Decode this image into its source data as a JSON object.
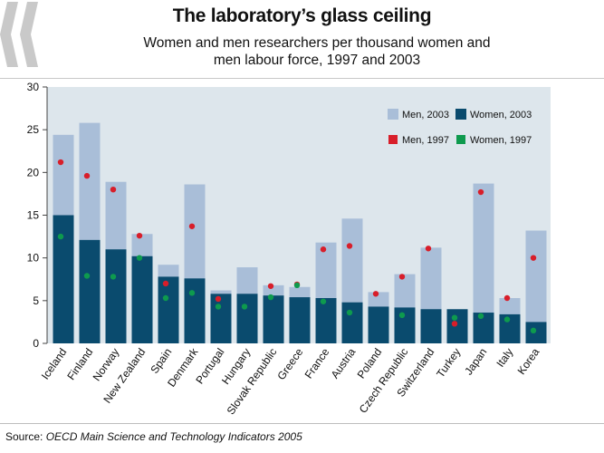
{
  "header": {
    "title": "The laboratory’s glass ceiling",
    "subtitle_line1": "Women and men researchers per thousand women and",
    "subtitle_line2": "men labour force, 1997 and 2003"
  },
  "footer": {
    "source_label": "Source:",
    "source_text": "OECD Main Science and Technology Indicators 2005"
  },
  "colors": {
    "plot_bg": "#dde6ec",
    "men_2003": "#a9bed8",
    "women_2003": "#0a4b6e",
    "men_1997": "#d81e2a",
    "women_1997": "#0e9a4e",
    "chevron": "#c9c9c9"
  },
  "chart_data": {
    "type": "bar",
    "title": "The laboratory’s glass ceiling",
    "subtitle": "Women and men researchers per thousand women and men labour force, 1997 and 2003",
    "categories": [
      "Iceland",
      "Finland",
      "Norway",
      "New Zealand",
      "Spain",
      "Denmark",
      "Portugal",
      "Hungary",
      "Slovak Republic",
      "Greece",
      "France",
      "Austria",
      "Poland",
      "Czech Republic",
      "Switzerland",
      "Turkey",
      "Japan",
      "Italy",
      "Korea"
    ],
    "ylim": [
      0,
      30
    ],
    "yticks": [
      0,
      5,
      10,
      15,
      20,
      25,
      30
    ],
    "legend_position": "top-right",
    "series": [
      {
        "name": "Men, 2003",
        "kind": "bar",
        "values": [
          24.4,
          25.8,
          18.9,
          12.8,
          9.2,
          18.6,
          6.2,
          8.9,
          6.8,
          6.6,
          11.8,
          14.6,
          6.0,
          8.1,
          11.2,
          3.5,
          18.7,
          5.3,
          13.2
        ]
      },
      {
        "name": "Women, 2003",
        "kind": "bar",
        "values": [
          15.0,
          12.1,
          11.0,
          10.2,
          7.8,
          7.6,
          5.8,
          5.8,
          5.6,
          5.4,
          5.3,
          4.8,
          4.3,
          4.2,
          4.0,
          4.0,
          3.6,
          3.4,
          2.5
        ]
      },
      {
        "name": "Men, 1997",
        "kind": "point",
        "values": [
          21.2,
          19.6,
          18.0,
          12.6,
          7.0,
          13.7,
          5.2,
          null,
          6.7,
          6.9,
          11.0,
          11.4,
          5.8,
          7.8,
          11.1,
          2.3,
          17.7,
          5.3,
          10.0
        ]
      },
      {
        "name": "Women, 1997",
        "kind": "point",
        "values": [
          12.5,
          7.9,
          7.8,
          10.0,
          5.3,
          5.9,
          4.3,
          4.3,
          5.4,
          6.8,
          4.9,
          3.6,
          null,
          3.3,
          null,
          3.0,
          3.2,
          2.8,
          1.5
        ]
      }
    ]
  }
}
